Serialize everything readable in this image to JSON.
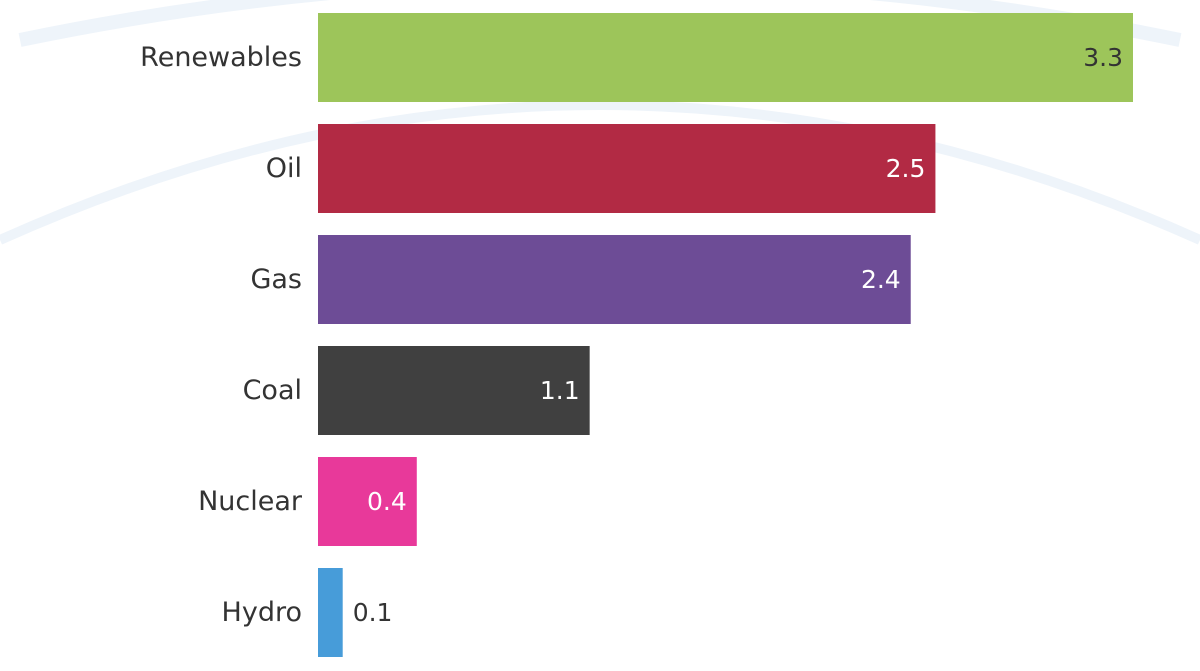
{
  "chart_data": {
    "type": "bar",
    "orientation": "horizontal",
    "categories": [
      "Renewables",
      "Oil",
      "Gas",
      "Coal",
      "Nuclear",
      "Hydro"
    ],
    "values": [
      3.3,
      2.5,
      2.4,
      1.1,
      0.4,
      0.1
    ],
    "value_labels": [
      "3.3",
      "2.5",
      "2.4",
      "1.1",
      "0.4",
      "0.1"
    ],
    "colors": [
      "#9dc55a",
      "#b22a44",
      "#6d4c96",
      "#404040",
      "#e8399a",
      "#479cd9"
    ],
    "xlim": [
      0,
      3.3
    ],
    "grid": false,
    "title": "",
    "xlabel": "",
    "ylabel": ""
  }
}
